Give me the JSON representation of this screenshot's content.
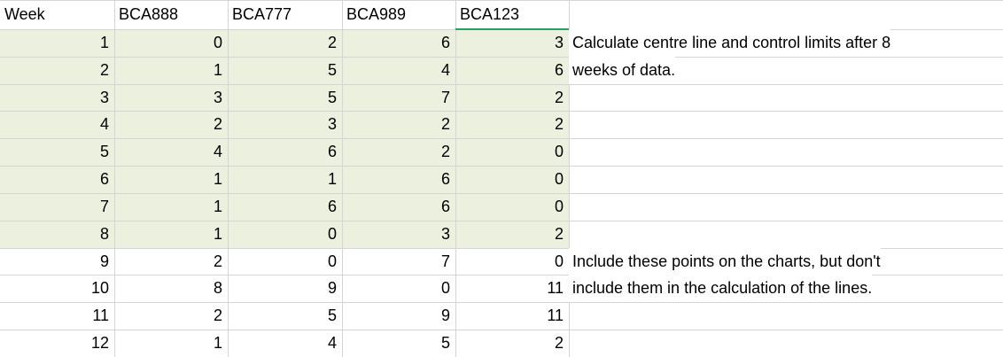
{
  "table": {
    "header": [
      "Week",
      "BCA888",
      "BCA777",
      "BCA989",
      "BCA123"
    ],
    "rows": [
      [
        1,
        0,
        2,
        6,
        3
      ],
      [
        2,
        1,
        5,
        4,
        6
      ],
      [
        3,
        3,
        5,
        7,
        2
      ],
      [
        4,
        2,
        3,
        2,
        2
      ],
      [
        5,
        4,
        6,
        2,
        0
      ],
      [
        6,
        1,
        1,
        6,
        0
      ],
      [
        7,
        1,
        6,
        6,
        0
      ],
      [
        8,
        1,
        0,
        3,
        2
      ],
      [
        9,
        2,
        0,
        7,
        0
      ],
      [
        10,
        8,
        9,
        0,
        11
      ],
      [
        11,
        2,
        5,
        9,
        11
      ],
      [
        12,
        1,
        4,
        5,
        2
      ]
    ]
  },
  "notes": [
    [
      "Calculate centre line and control limits after 8",
      "weeks of data."
    ],
    [
      "Include these points on the charts, but don't",
      "include them in the calculation of the lines."
    ]
  ]
}
